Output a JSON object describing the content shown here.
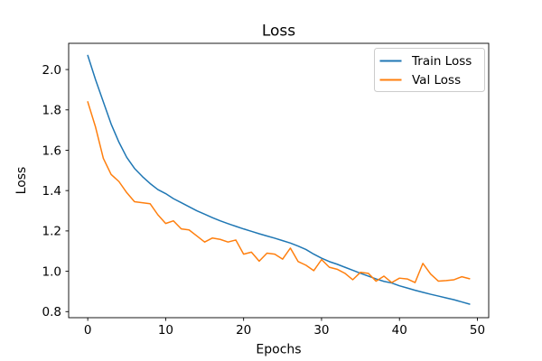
{
  "figure": {
    "background": "#ffffff"
  },
  "chart_data": {
    "type": "line",
    "title": "Loss",
    "xlabel": "Epochs",
    "ylabel": "Loss",
    "grid": false,
    "legend": {
      "position": "upper right",
      "entries": [
        "Train Loss",
        "Val Loss"
      ]
    },
    "xlim": [
      -2.45,
      51.45
    ],
    "ylim": [
      0.77,
      2.13
    ],
    "xticks": {
      "values": [
        0,
        10,
        20,
        30,
        40,
        50
      ],
      "labels": [
        "0",
        "10",
        "20",
        "30",
        "40",
        "50"
      ]
    },
    "yticks": {
      "values": [
        0.8,
        1.0,
        1.2,
        1.4,
        1.6,
        1.8,
        2.0
      ],
      "labels": [
        "0.8",
        "1.0",
        "1.2",
        "1.4",
        "1.6",
        "1.8",
        "2.0"
      ]
    },
    "x": [
      0,
      1,
      2,
      3,
      4,
      5,
      6,
      7,
      8,
      9,
      10,
      11,
      12,
      13,
      14,
      15,
      16,
      17,
      18,
      19,
      20,
      21,
      22,
      23,
      24,
      25,
      26,
      27,
      28,
      29,
      30,
      31,
      32,
      33,
      34,
      35,
      36,
      37,
      38,
      39,
      40,
      41,
      42,
      43,
      44,
      45,
      46,
      47,
      48,
      49
    ],
    "series": [
      {
        "name": "Train Loss",
        "color": "#1f77b4",
        "values": [
          2.07,
          1.95,
          1.84,
          1.73,
          1.64,
          1.565,
          1.51,
          1.47,
          1.435,
          1.405,
          1.385,
          1.36,
          1.34,
          1.32,
          1.3,
          1.283,
          1.266,
          1.25,
          1.236,
          1.223,
          1.21,
          1.198,
          1.186,
          1.175,
          1.164,
          1.152,
          1.14,
          1.125,
          1.108,
          1.085,
          1.065,
          1.048,
          1.035,
          1.02,
          1.005,
          0.99,
          0.976,
          0.962,
          0.95,
          0.942,
          0.928,
          0.917,
          0.906,
          0.896,
          0.886,
          0.877,
          0.868,
          0.859,
          0.848,
          0.837
        ]
      },
      {
        "name": "Val Loss",
        "color": "#ff7f0e",
        "values": [
          1.84,
          1.715,
          1.56,
          1.48,
          1.445,
          1.39,
          1.345,
          1.34,
          1.335,
          1.28,
          1.237,
          1.25,
          1.21,
          1.205,
          1.175,
          1.145,
          1.165,
          1.158,
          1.145,
          1.155,
          1.085,
          1.095,
          1.05,
          1.09,
          1.085,
          1.06,
          1.115,
          1.048,
          1.03,
          1.003,
          1.058,
          1.02,
          1.01,
          0.99,
          0.958,
          0.995,
          0.99,
          0.951,
          0.976,
          0.944,
          0.966,
          0.962,
          0.944,
          1.039,
          0.986,
          0.951,
          0.954,
          0.958,
          0.973,
          0.963
        ]
      }
    ]
  }
}
